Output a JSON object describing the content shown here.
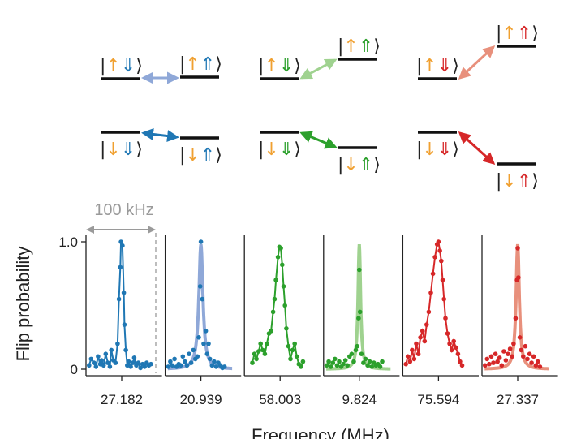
{
  "colors": {
    "blue": "#1f77b4",
    "blue_light": "#8fa8d8",
    "green": "#2ca02c",
    "green_light": "#9fd28f",
    "red": "#d62728",
    "red_light": "#e8907c",
    "orange": "#f0a030",
    "level": "#111111",
    "grey": "#9a9a9a"
  },
  "levels": {
    "ket_open": "|",
    "ket_close": "⟩",
    "groups": [
      {
        "top": {
          "left": [
            "↑",
            "⇓"
          ],
          "right": [
            "↑",
            "⇑"
          ],
          "arrow_color": "blue_light",
          "spin_color": "blue"
        },
        "bottom": {
          "left": [
            "↓",
            "⇓"
          ],
          "right": [
            "↓",
            "⇑"
          ],
          "arrow_color": "blue",
          "spin_color": "blue"
        }
      },
      {
        "top": {
          "left": [
            "↑",
            "⇓"
          ],
          "right": [
            "↑",
            "⇑"
          ],
          "arrow_color": "green_light",
          "spin_color": "green"
        },
        "bottom": {
          "left": [
            "↓",
            "⇓"
          ],
          "right": [
            "↓",
            "⇑"
          ],
          "arrow_color": "green",
          "spin_color": "green"
        }
      },
      {
        "top": {
          "left": [
            "↑",
            "⇓"
          ],
          "right": [
            "↑",
            "⇑"
          ],
          "arrow_color": "red_light",
          "spin_color": "red"
        },
        "bottom": {
          "left": [
            "↓",
            "⇓"
          ],
          "right": [
            "↓",
            "⇑"
          ],
          "arrow_color": "red",
          "spin_color": "red"
        }
      }
    ]
  },
  "chart_data": {
    "type": "scatter",
    "ylabel": "Flip probability",
    "xlabel": "Frequency (MHz)",
    "ylim": [
      0,
      1.0
    ],
    "yticks": [
      "0",
      "1.0"
    ],
    "scale_bar_label": "100 kHz",
    "span_khz": 100,
    "panels": [
      {
        "center_label": "27.182",
        "color": "blue",
        "fit_color": "blue",
        "width_khz": 5.5,
        "points": [
          [
            -47,
            0.03
          ],
          [
            -44,
            0.08
          ],
          [
            -40,
            0.05
          ],
          [
            -37,
            0.02
          ],
          [
            -34,
            0.1
          ],
          [
            -31,
            0.04
          ],
          [
            -29,
            0.07
          ],
          [
            -26,
            0.03
          ],
          [
            -23,
            0.12
          ],
          [
            -20,
            0.05
          ],
          [
            -17,
            0.02
          ],
          [
            -15,
            0.15
          ],
          [
            -12,
            0.07
          ],
          [
            -9,
            0.05
          ],
          [
            -6,
            0.2
          ],
          [
            -4,
            0.55
          ],
          [
            -2,
            0.8
          ],
          [
            -1,
            1.0
          ],
          [
            1,
            0.97
          ],
          [
            3,
            0.6
          ],
          [
            4,
            0.35
          ],
          [
            6,
            0.15
          ],
          [
            8,
            0.03
          ],
          [
            10,
            0.06
          ],
          [
            13,
            0.02
          ],
          [
            16,
            0.05
          ],
          [
            18,
            0.09
          ],
          [
            21,
            0.03
          ],
          [
            24,
            0.05
          ],
          [
            27,
            0.01
          ],
          [
            30,
            0.04
          ],
          [
            33,
            0.02
          ],
          [
            36,
            0.05
          ],
          [
            39,
            0.03
          ],
          [
            42,
            0.04
          ]
        ]
      },
      {
        "center_label": "20.939",
        "color": "blue",
        "fit_color": "blue_light",
        "width_khz": 3.5,
        "points": [
          [
            -47,
            0.02
          ],
          [
            -44,
            0.06
          ],
          [
            -41,
            0.03
          ],
          [
            -38,
            0.08
          ],
          [
            -35,
            0.02
          ],
          [
            -32,
            0.04
          ],
          [
            -29,
            0.03
          ],
          [
            -26,
            0.1
          ],
          [
            -23,
            0.06
          ],
          [
            -20,
            0.03
          ],
          [
            -17,
            0.12
          ],
          [
            -14,
            0.05
          ],
          [
            -11,
            0.15
          ],
          [
            -8,
            0.08
          ],
          [
            -5,
            0.1
          ],
          [
            -3,
            0.25
          ],
          [
            -1,
            0.65
          ],
          [
            0,
            1.0
          ],
          [
            2,
            0.55
          ],
          [
            4,
            0.2
          ],
          [
            7,
            0.3
          ],
          [
            9,
            0.12
          ],
          [
            11,
            0.2
          ],
          [
            13,
            0.08
          ],
          [
            16,
            0.03
          ],
          [
            19,
            0.06
          ],
          [
            22,
            0.02
          ],
          [
            25,
            0.05
          ],
          [
            28,
            0.03
          ],
          [
            31,
            0.01
          ],
          [
            34,
            0.02
          ]
        ]
      },
      {
        "center_label": "58.003",
        "color": "green",
        "fit_color": "green",
        "width_khz": 9,
        "points": [
          [
            -40,
            0.05
          ],
          [
            -37,
            0.12
          ],
          [
            -34,
            0.08
          ],
          [
            -31,
            0.14
          ],
          [
            -28,
            0.2
          ],
          [
            -25,
            0.15
          ],
          [
            -22,
            0.12
          ],
          [
            -19,
            0.2
          ],
          [
            -16,
            0.28
          ],
          [
            -13,
            0.3
          ],
          [
            -10,
            0.45
          ],
          [
            -8,
            0.55
          ],
          [
            -6,
            0.7
          ],
          [
            -3,
            0.88
          ],
          [
            -1,
            0.96
          ],
          [
            1,
            0.95
          ],
          [
            3,
            0.82
          ],
          [
            5,
            0.65
          ],
          [
            7,
            0.5
          ],
          [
            9,
            0.32
          ],
          [
            12,
            0.18
          ],
          [
            15,
            0.08
          ],
          [
            18,
            0.15
          ],
          [
            21,
            0.2
          ],
          [
            24,
            0.1
          ],
          [
            27,
            0.04
          ],
          [
            30,
            0.02
          ],
          [
            33,
            0.06
          ]
        ]
      },
      {
        "center_label": "9.824",
        "color": "green",
        "fit_color": "green_light",
        "width_khz": 2.2,
        "points": [
          [
            -47,
            0.03
          ],
          [
            -44,
            0.06
          ],
          [
            -41,
            0.02
          ],
          [
            -38,
            0.05
          ],
          [
            -35,
            0.08
          ],
          [
            -32,
            0.03
          ],
          [
            -29,
            0.06
          ],
          [
            -26,
            0.02
          ],
          [
            -23,
            0.04
          ],
          [
            -20,
            0.07
          ],
          [
            -17,
            0.03
          ],
          [
            -14,
            0.1
          ],
          [
            -11,
            0.12
          ],
          [
            -8,
            0.06
          ],
          [
            -5,
            0.15
          ],
          [
            -3,
            0.18
          ],
          [
            -1,
            0.4
          ],
          [
            0,
            0.78
          ],
          [
            1,
            0.45
          ],
          [
            3,
            0.12
          ],
          [
            6,
            0.05
          ],
          [
            9,
            0.08
          ],
          [
            12,
            0.03
          ],
          [
            15,
            0.06
          ],
          [
            18,
            0.02
          ],
          [
            21,
            0.05
          ],
          [
            24,
            0.03
          ],
          [
            27,
            0.04
          ],
          [
            30,
            0.02
          ],
          [
            33,
            0.06
          ]
        ]
      },
      {
        "center_label": "75.594",
        "color": "red",
        "fit_color": "red",
        "width_khz": 9,
        "points": [
          [
            -47,
            0.04
          ],
          [
            -44,
            0.1
          ],
          [
            -41,
            0.06
          ],
          [
            -38,
            0.15
          ],
          [
            -35,
            0.08
          ],
          [
            -32,
            0.2
          ],
          [
            -29,
            0.12
          ],
          [
            -26,
            0.25
          ],
          [
            -23,
            0.3
          ],
          [
            -20,
            0.22
          ],
          [
            -17,
            0.35
          ],
          [
            -14,
            0.45
          ],
          [
            -11,
            0.6
          ],
          [
            -8,
            0.75
          ],
          [
            -5,
            0.88
          ],
          [
            -2,
            0.98
          ],
          [
            0,
            1.0
          ],
          [
            2,
            0.93
          ],
          [
            4,
            0.85
          ],
          [
            6,
            0.7
          ],
          [
            8,
            0.55
          ],
          [
            10,
            0.4
          ],
          [
            13,
            0.28
          ],
          [
            16,
            0.2
          ],
          [
            19,
            0.15
          ],
          [
            22,
            0.22
          ],
          [
            25,
            0.17
          ],
          [
            28,
            0.12
          ],
          [
            31,
            0.06
          ],
          [
            34,
            0.03
          ]
        ]
      },
      {
        "center_label": "27.337",
        "color": "red",
        "fit_color": "red_light",
        "width_khz": 2.8,
        "points": [
          [
            -47,
            0.03
          ],
          [
            -44,
            0.08
          ],
          [
            -41,
            0.04
          ],
          [
            -38,
            0.1
          ],
          [
            -35,
            0.05
          ],
          [
            -32,
            0.12
          ],
          [
            -29,
            0.06
          ],
          [
            -26,
            0.09
          ],
          [
            -23,
            0.03
          ],
          [
            -20,
            0.14
          ],
          [
            -17,
            0.07
          ],
          [
            -14,
            0.12
          ],
          [
            -11,
            0.16
          ],
          [
            -8,
            0.1
          ],
          [
            -6,
            0.2
          ],
          [
            -3,
            0.4
          ],
          [
            -1,
            0.7
          ],
          [
            0,
            0.95
          ],
          [
            1,
            0.72
          ],
          [
            3,
            0.25
          ],
          [
            5,
            0.15
          ],
          [
            8,
            0.1
          ],
          [
            11,
            0.18
          ],
          [
            14,
            0.08
          ],
          [
            17,
            0.12
          ],
          [
            20,
            0.05
          ],
          [
            23,
            0.1
          ],
          [
            26,
            0.03
          ],
          [
            29,
            0.06
          ],
          [
            32,
            0.02
          ]
        ]
      }
    ]
  }
}
